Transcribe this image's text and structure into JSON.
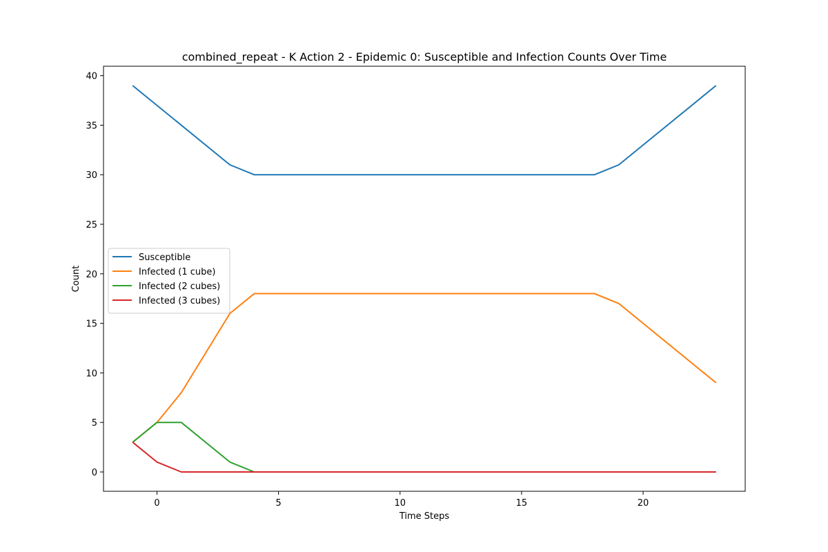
{
  "chart_data": {
    "type": "line",
    "title": "combined_repeat - K Action 2 - Epidemic 0: Susceptible and Infection Counts Over Time",
    "xlabel": "Time Steps",
    "ylabel": "Count",
    "xlim": [
      -2.2,
      24.2
    ],
    "ylim": [
      -1.95,
      40.95
    ],
    "xticks": [
      0,
      5,
      10,
      15,
      20
    ],
    "yticks": [
      0,
      5,
      10,
      15,
      20,
      25,
      30,
      35,
      40
    ],
    "grid": false,
    "legend_position": "center-left",
    "series": [
      {
        "name": "Susceptible",
        "color": "#1f77b4",
        "points": [
          [
            -1,
            39
          ],
          [
            0,
            37
          ],
          [
            1,
            35
          ],
          [
            3,
            31
          ],
          [
            4,
            30
          ],
          [
            18,
            30
          ],
          [
            19,
            31
          ],
          [
            23,
            39
          ]
        ]
      },
      {
        "name": "Infected (1 cube)",
        "color": "#ff7f0e",
        "points": [
          [
            -1,
            3
          ],
          [
            0,
            5
          ],
          [
            1,
            8
          ],
          [
            3,
            16
          ],
          [
            4,
            18
          ],
          [
            18,
            18
          ],
          [
            19,
            17
          ],
          [
            23,
            9
          ]
        ]
      },
      {
        "name": "Infected (2 cubes)",
        "color": "#2ca02c",
        "points": [
          [
            -1,
            3
          ],
          [
            0,
            5
          ],
          [
            1,
            5
          ],
          [
            3,
            1
          ],
          [
            4,
            0
          ],
          [
            23,
            0
          ]
        ]
      },
      {
        "name": "Infected (3 cubes)",
        "color": "#d62728",
        "points": [
          [
            -1,
            3
          ],
          [
            0,
            1
          ],
          [
            1,
            0
          ],
          [
            23,
            0
          ]
        ]
      }
    ]
  }
}
